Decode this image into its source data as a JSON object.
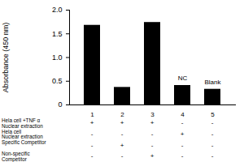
{
  "chart_data": {
    "type": "bar",
    "y_label": "Absorbance (450 nm)",
    "categories": [
      "1",
      "2",
      "3",
      "4",
      "5"
    ],
    "values": [
      1.68,
      0.37,
      1.74,
      0.41,
      0.33
    ],
    "color": "#000000",
    "ylim": [
      0,
      2
    ],
    "yticks": [
      0,
      0.5,
      {
        "value": 1,
        "label": "1.0"
      },
      1.5,
      {
        "value": 2,
        "label": "2.0"
      }
    ],
    "grid": false,
    "annotations": [
      {
        "x": "4",
        "text": "NC"
      },
      {
        "x": "5",
        "text": "Blank"
      }
    ],
    "condition_table": {
      "rows": [
        {
          "label": [
            "Hela cell +TNF α",
            "Nuclear extraction"
          ],
          "marks": [
            "+",
            "+",
            "+",
            "-",
            "-"
          ]
        },
        {
          "label": [
            "Hela cell",
            "Nuclear extraction"
          ],
          "marks": [
            "-",
            "-",
            "-",
            "+",
            "-"
          ]
        },
        {
          "label": [
            "Specific Competitor"
          ],
          "marks": [
            "-",
            "+",
            "-",
            "-",
            "-"
          ]
        },
        {
          "label": [
            "Non-specific",
            "Competitor"
          ],
          "marks": [
            "-",
            "-",
            "+",
            "-",
            "-"
          ]
        }
      ]
    }
  }
}
